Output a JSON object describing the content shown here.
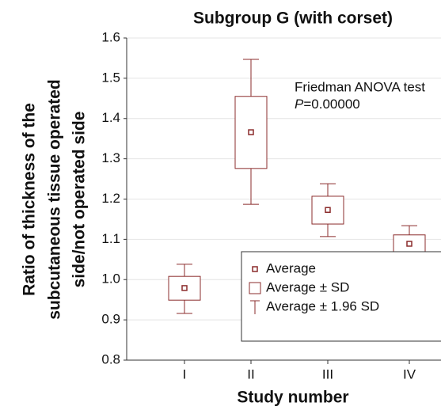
{
  "chart_data": {
    "type": "meanbox",
    "title": "Subgroup G (with corset)",
    "x_label": "Study number",
    "y_label": [
      "Ratio of thickness of the",
      "subcutaneous tissue operated",
      "side/not operated side"
    ],
    "categories": [
      "I",
      "II",
      "III",
      "IV"
    ],
    "color": "#8b2c2c",
    "mean": [
      0.979,
      1.366,
      1.173,
      1.089
    ],
    "sd_low": [
      0.949,
      1.276,
      1.138,
      1.065
    ],
    "sd_high": [
      1.008,
      1.455,
      1.207,
      1.111
    ],
    "ci_low": [
      0.916,
      1.187,
      1.107,
      1.043
    ],
    "ci_high": [
      1.038,
      1.547,
      1.238,
      1.134
    ],
    "ylim": [
      0.8,
      1.6
    ],
    "yticks": [
      {
        "value": 0.8,
        "label": "0.8"
      },
      {
        "value": 0.9,
        "label": "0.9"
      },
      {
        "value": 1.0,
        "label": "1.0"
      },
      {
        "value": 1.1,
        "label": "1.1"
      },
      {
        "value": 1.2,
        "label": "1.2"
      },
      {
        "value": 1.3,
        "label": "1.3"
      },
      {
        "value": 1.4,
        "label": "1.4"
      },
      {
        "value": 1.5,
        "label": "1.5"
      },
      {
        "value": 1.6,
        "label": "1.6"
      }
    ],
    "grid": true,
    "annotation": {
      "line1": "Friedman ANOVA test",
      "p_symbol": "P",
      "p_value": "=0.00000"
    },
    "legend": [
      "Average",
      "Average ± SD",
      "Average ± 1.96 SD"
    ]
  }
}
